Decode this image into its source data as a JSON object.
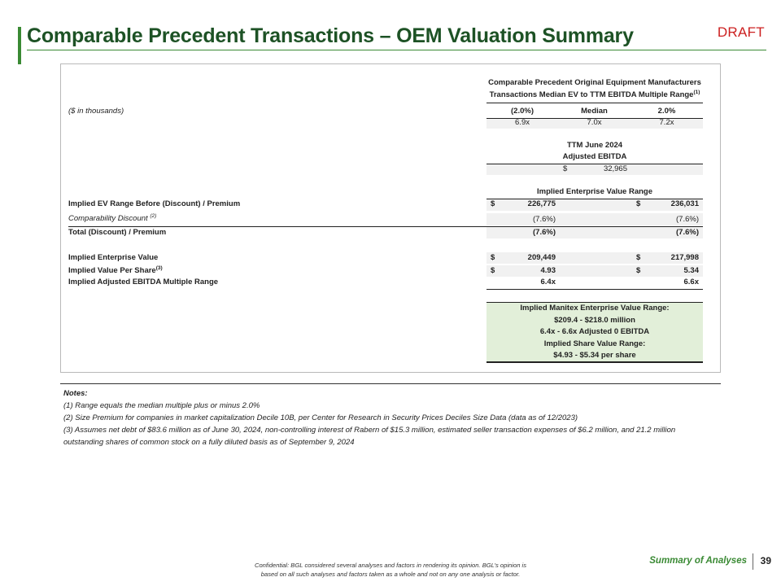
{
  "header": {
    "title": "Comparable Precedent Transactions – OEM Valuation Summary",
    "draft_label": "DRAFT"
  },
  "table": {
    "heading_line1": "Comparable Precedent Original Equipment Manufacturers",
    "heading_line2": "Transactions Median EV to TTM EBITDA Multiple Range",
    "heading_sup": "(1)",
    "units_label": "($ in thousands)",
    "multiple_headers": [
      "(2.0%)",
      "Median",
      "2.0%"
    ],
    "multiple_values": [
      "6.9x",
      "7.0x",
      "7.2x"
    ],
    "ebitda_heading_line1": "TTM June 2024",
    "ebitda_heading_line2": "Adjusted EBITDA",
    "ebitda_currency": "$",
    "ebitda_value": "32,965",
    "ev_range_heading": "Implied Enterprise Value Range",
    "rows": {
      "ev_before": {
        "label": "Implied EV Range Before (Discount) / Premium",
        "cur_low": "$",
        "low": "226,775",
        "cur_high": "$",
        "high": "236,031"
      },
      "comp_discount": {
        "label": "Comparability Discount",
        "sup": "(2)",
        "low": "(7.6%)",
        "high": "(7.6%)"
      },
      "total_discount": {
        "label": "Total (Discount) / Premium",
        "low": "(7.6%)",
        "high": "(7.6%)"
      },
      "implied_ev": {
        "label": "Implied Enterprise Value",
        "cur_low": "$",
        "low": "209,449",
        "cur_high": "$",
        "high": "217,998"
      },
      "per_share": {
        "label": "Implied Value Per Share",
        "sup": "(3)",
        "cur_low": "$",
        "low": "4.93",
        "cur_high": "$",
        "high": "5.34"
      },
      "ebitda_multiple": {
        "label": "Implied Adjusted EBITDA Multiple Range",
        "low": "6.4x",
        "high": "6.6x"
      }
    },
    "summary_box": [
      "Implied Manitex Enterprise Value Range:",
      "$209.4 - $218.0 million",
      "6.4x - 6.6x Adjusted 0 EBITDA",
      "Implied Share Value Range:",
      "$4.93 - $5.34 per share"
    ]
  },
  "notes": {
    "heading": "Notes:",
    "items": [
      "(1) Range equals the median multiple plus or minus 2.0%",
      "(2) Size Premium for companies in market capitalization Decile 10B, per Center for Research in Security Prices Deciles Size Data (data as of 12/2023)",
      "(3) Assumes net debt of $83.6 million as of June 30, 2024, non-controlling interest of Rabern of $15.3 million, estimated seller transaction expenses of $6.2 million, and 21.2 million",
      "outstanding shares of common stock on a fully diluted basis as of September 9, 2024"
    ]
  },
  "footer": {
    "confidential_line1": "Confidential: BGL considered several analyses and factors in rendering its opinion. BGL’s opinion is",
    "confidential_line2": "based on all such analyses and factors taken as a whole and not on any one analysis or factor.",
    "section_label": "Summary of Analyses",
    "page_number": "39"
  },
  "colors": {
    "title_green": "#1d5225",
    "accent_green": "#3a8a34",
    "draft_red": "#cc2020",
    "summary_fill": "#e2efd9",
    "row_shade": "#f1f1f1"
  }
}
